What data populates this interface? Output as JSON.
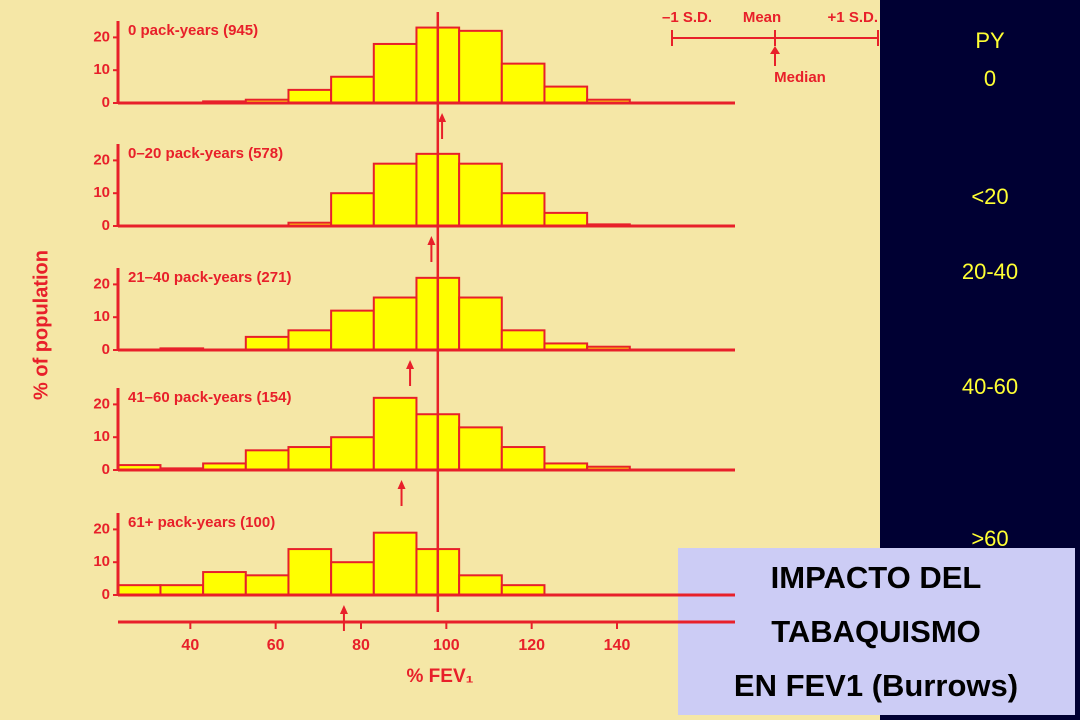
{
  "chart_data": [
    {
      "type": "histogram",
      "title": "0 pack-years (945)",
      "bins": [
        23,
        33,
        43,
        53,
        63,
        73,
        83,
        93,
        103,
        113,
        123,
        133,
        143,
        153
      ],
      "values": [
        0,
        0,
        0.5,
        1,
        4,
        8,
        18,
        23,
        22,
        12,
        5,
        1,
        0
      ],
      "median": 99,
      "xlim": [
        20,
        170
      ],
      "ylim": [
        0,
        25
      ],
      "yticks": [
        0,
        10,
        20
      ],
      "color": "#ffff00"
    },
    {
      "type": "histogram",
      "title": "0–20 pack-years (578)",
      "bins": [
        23,
        33,
        43,
        53,
        63,
        73,
        83,
        93,
        103,
        113,
        123,
        133,
        143,
        153
      ],
      "values": [
        0,
        0,
        0,
        0,
        1,
        10,
        19,
        22,
        19,
        10,
        4,
        0.5,
        0
      ],
      "median": 96.5,
      "xlim": [
        20,
        170
      ],
      "ylim": [
        0,
        25
      ],
      "yticks": [
        0,
        10,
        20
      ],
      "color": "#ffff00"
    },
    {
      "type": "histogram",
      "title": "21–40 pack-years (271)",
      "bins": [
        23,
        33,
        43,
        53,
        63,
        73,
        83,
        93,
        103,
        113,
        123,
        133,
        143,
        153
      ],
      "values": [
        0,
        0.5,
        0,
        4,
        6,
        12,
        16,
        22,
        16,
        6,
        2,
        1,
        0
      ],
      "median": 91.5,
      "xlim": [
        20,
        170
      ],
      "ylim": [
        0,
        25
      ],
      "yticks": [
        0,
        10,
        20
      ],
      "color": "#ffff00"
    },
    {
      "type": "histogram",
      "title": "41–60 pack-years (154)",
      "bins": [
        23,
        33,
        43,
        53,
        63,
        73,
        83,
        93,
        103,
        113,
        123,
        133,
        143,
        153
      ],
      "values": [
        1.5,
        0.5,
        2,
        6,
        7,
        10,
        22,
        17,
        13,
        7,
        2,
        1,
        0
      ],
      "median": 89.5,
      "xlim": [
        20,
        170
      ],
      "ylim": [
        0,
        25
      ],
      "yticks": [
        0,
        10,
        20
      ],
      "color": "#ffff00"
    },
    {
      "type": "histogram",
      "title": "61+ pack-years (100)",
      "bins": [
        23,
        33,
        43,
        53,
        63,
        73,
        83,
        93,
        103,
        113,
        123,
        133,
        143,
        153
      ],
      "values": [
        3,
        3,
        7,
        6,
        14,
        10,
        19,
        14,
        6,
        3,
        0,
        0,
        0
      ],
      "median": 76,
      "xlim": [
        20,
        170
      ],
      "ylim": [
        0,
        25
      ],
      "yticks": [
        0,
        10,
        20
      ],
      "xticks": [
        40,
        60,
        80,
        100,
        120,
        140
      ],
      "x_label": "% FEV₁",
      "color": "#ffff00"
    }
  ],
  "y_label": "% of population",
  "reference_line": 98,
  "legend_key": {
    "minus_sd": "–1 S.D.",
    "mean": "Mean",
    "plus_sd": "+1 S.D.",
    "median": "Median"
  },
  "py_labels": [
    "PY",
    "0",
    "<20",
    "20-40",
    "40-60",
    ">60"
  ],
  "box": {
    "lines": [
      "IMPACTO DEL",
      "TABAQUISMO",
      "EN FEV1 (Burrows)"
    ]
  }
}
